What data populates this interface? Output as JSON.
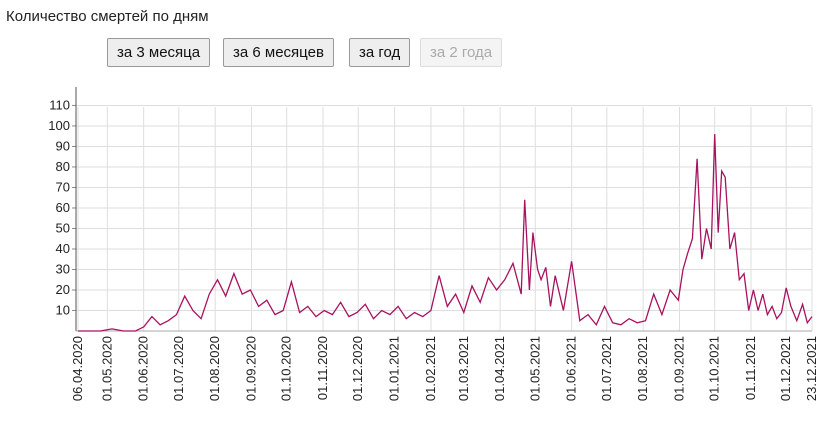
{
  "chart_data": {
    "type": "line",
    "title": "Количество смертей по дням",
    "x": [
      "06.04.2020",
      "15.04.2020",
      "25.04.2020",
      "05.05.2020",
      "15.05.2020",
      "25.05.2020",
      "01.06.2020",
      "08.06.2020",
      "15.06.2020",
      "22.06.2020",
      "29.06.2020",
      "06.07.2020",
      "13.07.2020",
      "20.07.2020",
      "27.07.2020",
      "03.08.2020",
      "10.08.2020",
      "17.08.2020",
      "24.08.2020",
      "31.08.2020",
      "07.09.2020",
      "14.09.2020",
      "21.09.2020",
      "28.09.2020",
      "05.10.2020",
      "12.10.2020",
      "19.10.2020",
      "26.10.2020",
      "02.11.2020",
      "09.11.2020",
      "16.11.2020",
      "23.11.2020",
      "30.11.2020",
      "07.12.2020",
      "14.12.2020",
      "21.12.2020",
      "28.12.2020",
      "04.01.2021",
      "11.01.2021",
      "18.01.2021",
      "25.01.2021",
      "01.02.2021",
      "08.02.2021",
      "15.02.2021",
      "22.02.2021",
      "01.03.2021",
      "08.03.2021",
      "15.03.2021",
      "22.03.2021",
      "29.03.2021",
      "05.04.2021",
      "12.04.2021",
      "19.04.2021",
      "22.04.2021",
      "26.04.2021",
      "29.04.2021",
      "03.05.2021",
      "06.05.2021",
      "10.05.2021",
      "14.05.2021",
      "18.05.2021",
      "25.05.2021",
      "01.06.2021",
      "08.06.2021",
      "15.06.2021",
      "22.06.2021",
      "29.06.2021",
      "06.07.2021",
      "13.07.2021",
      "20.07.2021",
      "27.07.2021",
      "03.08.2021",
      "10.08.2021",
      "17.08.2021",
      "24.08.2021",
      "31.08.2021",
      "04.09.2021",
      "08.09.2021",
      "12.09.2021",
      "16.09.2021",
      "20.09.2021",
      "24.09.2021",
      "28.09.2021",
      "01.10.2021",
      "04.10.2021",
      "07.10.2021",
      "10.10.2021",
      "14.10.2021",
      "18.10.2021",
      "22.10.2021",
      "26.10.2021",
      "30.10.2021",
      "03.11.2021",
      "07.11.2021",
      "11.11.2021",
      "15.11.2021",
      "19.11.2021",
      "23.11.2021",
      "27.11.2021",
      "01.12.2021",
      "05.12.2021",
      "10.12.2021",
      "15.12.2021",
      "19.12.2021",
      "23.12.2021"
    ],
    "series": [
      {
        "color": "#a8125f",
        "values": [
          0,
          0,
          0,
          1,
          0,
          0,
          2,
          7,
          3,
          5,
          8,
          17,
          10,
          6,
          18,
          25,
          17,
          28,
          18,
          20,
          12,
          15,
          8,
          10,
          24,
          9,
          12,
          7,
          10,
          8,
          14,
          7,
          9,
          13,
          6,
          10,
          8,
          12,
          6,
          9,
          7,
          10,
          27,
          12,
          18,
          9,
          22,
          14,
          26,
          20,
          25,
          33,
          18,
          64,
          20,
          48,
          30,
          25,
          31,
          12,
          27,
          10,
          34,
          5,
          8,
          3,
          12,
          4,
          3,
          6,
          4,
          5,
          18,
          8,
          20,
          15,
          30,
          38,
          45,
          84,
          35,
          50,
          40,
          96,
          48,
          78,
          75,
          40,
          48,
          25,
          28,
          10,
          20,
          10,
          18,
          8,
          12,
          6,
          9,
          21,
          12,
          5,
          13,
          4,
          7
        ]
      }
    ],
    "xticks": [
      "06.04.2020",
      "01.05.2020",
      "01.06.2020",
      "01.07.2020",
      "01.08.2020",
      "01.09.2020",
      "01.10.2020",
      "01.11.2020",
      "01.12.2020",
      "01.01.2021",
      "01.02.2021",
      "01.03.2021",
      "01.04.2021",
      "01.05.2021",
      "01.06.2021",
      "01.07.2021",
      "01.08.2021",
      "01.09.2021",
      "01.10.2021",
      "01.11.2021",
      "01.12.2021",
      "23.12.2021"
    ],
    "ylim": [
      0,
      119
    ],
    "yticks": [
      10,
      20,
      30,
      40,
      50,
      60,
      70,
      80,
      90,
      100,
      110
    ],
    "grid": true
  },
  "controls": [
    {
      "label": "за 3 месяца",
      "enabled": true
    },
    {
      "label": "за 6 месяцев",
      "enabled": true
    },
    {
      "label": "за год",
      "enabled": true
    },
    {
      "label": "за 2 года",
      "enabled": false
    }
  ]
}
